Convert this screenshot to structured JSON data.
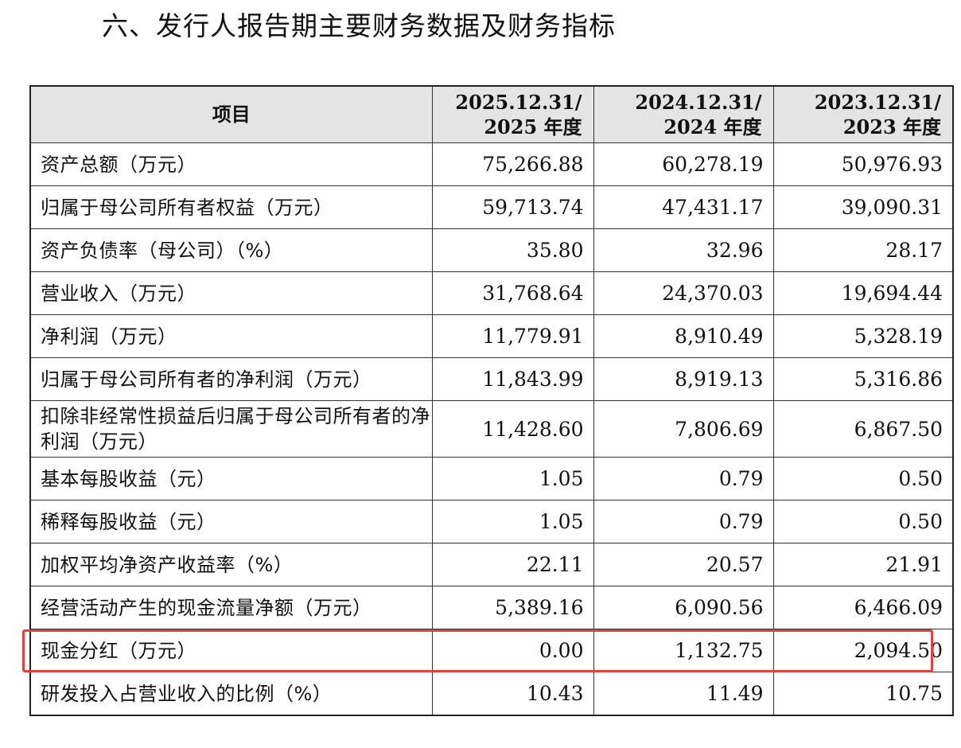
{
  "page": {
    "title": "六、发行人报告期主要财务数据及财务指标"
  },
  "table": {
    "headers": [
      {
        "line1": "项目",
        "line2": ""
      },
      {
        "line1": "2025.12.31/",
        "line2": "2025 年度"
      },
      {
        "line1": "2024.12.31/",
        "line2": "2024 年度"
      },
      {
        "line1": "2023.12.31/",
        "line2": "2023 年度"
      }
    ],
    "rows": [
      {
        "label": "资产总额（万元）",
        "values": [
          "75,266.88",
          "60,278.19",
          "50,976.93"
        ]
      },
      {
        "label": "归属于母公司所有者权益（万元）",
        "values": [
          "59,713.74",
          "47,431.17",
          "39,090.31"
        ]
      },
      {
        "label": "资产负债率（母公司）（%）",
        "values": [
          "35.80",
          "32.96",
          "28.17"
        ]
      },
      {
        "label": "营业收入（万元）",
        "values": [
          "31,768.64",
          "24,370.03",
          "19,694.44"
        ]
      },
      {
        "label": "净利润（万元）",
        "values": [
          "11,779.91",
          "8,910.49",
          "5,328.19"
        ]
      },
      {
        "label": "归属于母公司所有者的净利润（万元）",
        "values": [
          "11,843.99",
          "8,919.13",
          "5,316.86"
        ]
      },
      {
        "label": "扣除非经常性损益后归属于母公司所有者的净利润（万元）",
        "values": [
          "11,428.60",
          "7,806.69",
          "6,867.50"
        ]
      },
      {
        "label": "基本每股收益（元）",
        "values": [
          "1.05",
          "0.79",
          "0.50"
        ]
      },
      {
        "label": "稀释每股收益（元）",
        "values": [
          "1.05",
          "0.79",
          "0.50"
        ]
      },
      {
        "label": "加权平均净资产收益率（%）",
        "values": [
          "22.11",
          "20.57",
          "21.91"
        ]
      },
      {
        "label": "经营活动产生的现金流量净额（万元）",
        "values": [
          "5,389.16",
          "6,090.56",
          "6,466.09"
        ]
      },
      {
        "label": "现金分红（万元）",
        "values": [
          "0.00",
          "1,132.75",
          "2,094.50"
        ]
      },
      {
        "label": "研发投入占营业收入的比例（%）",
        "values": [
          "10.43",
          "11.49",
          "10.75"
        ]
      }
    ]
  },
  "highlight": {
    "color": "#e2423f",
    "row_label": "现金分红（万元）"
  }
}
